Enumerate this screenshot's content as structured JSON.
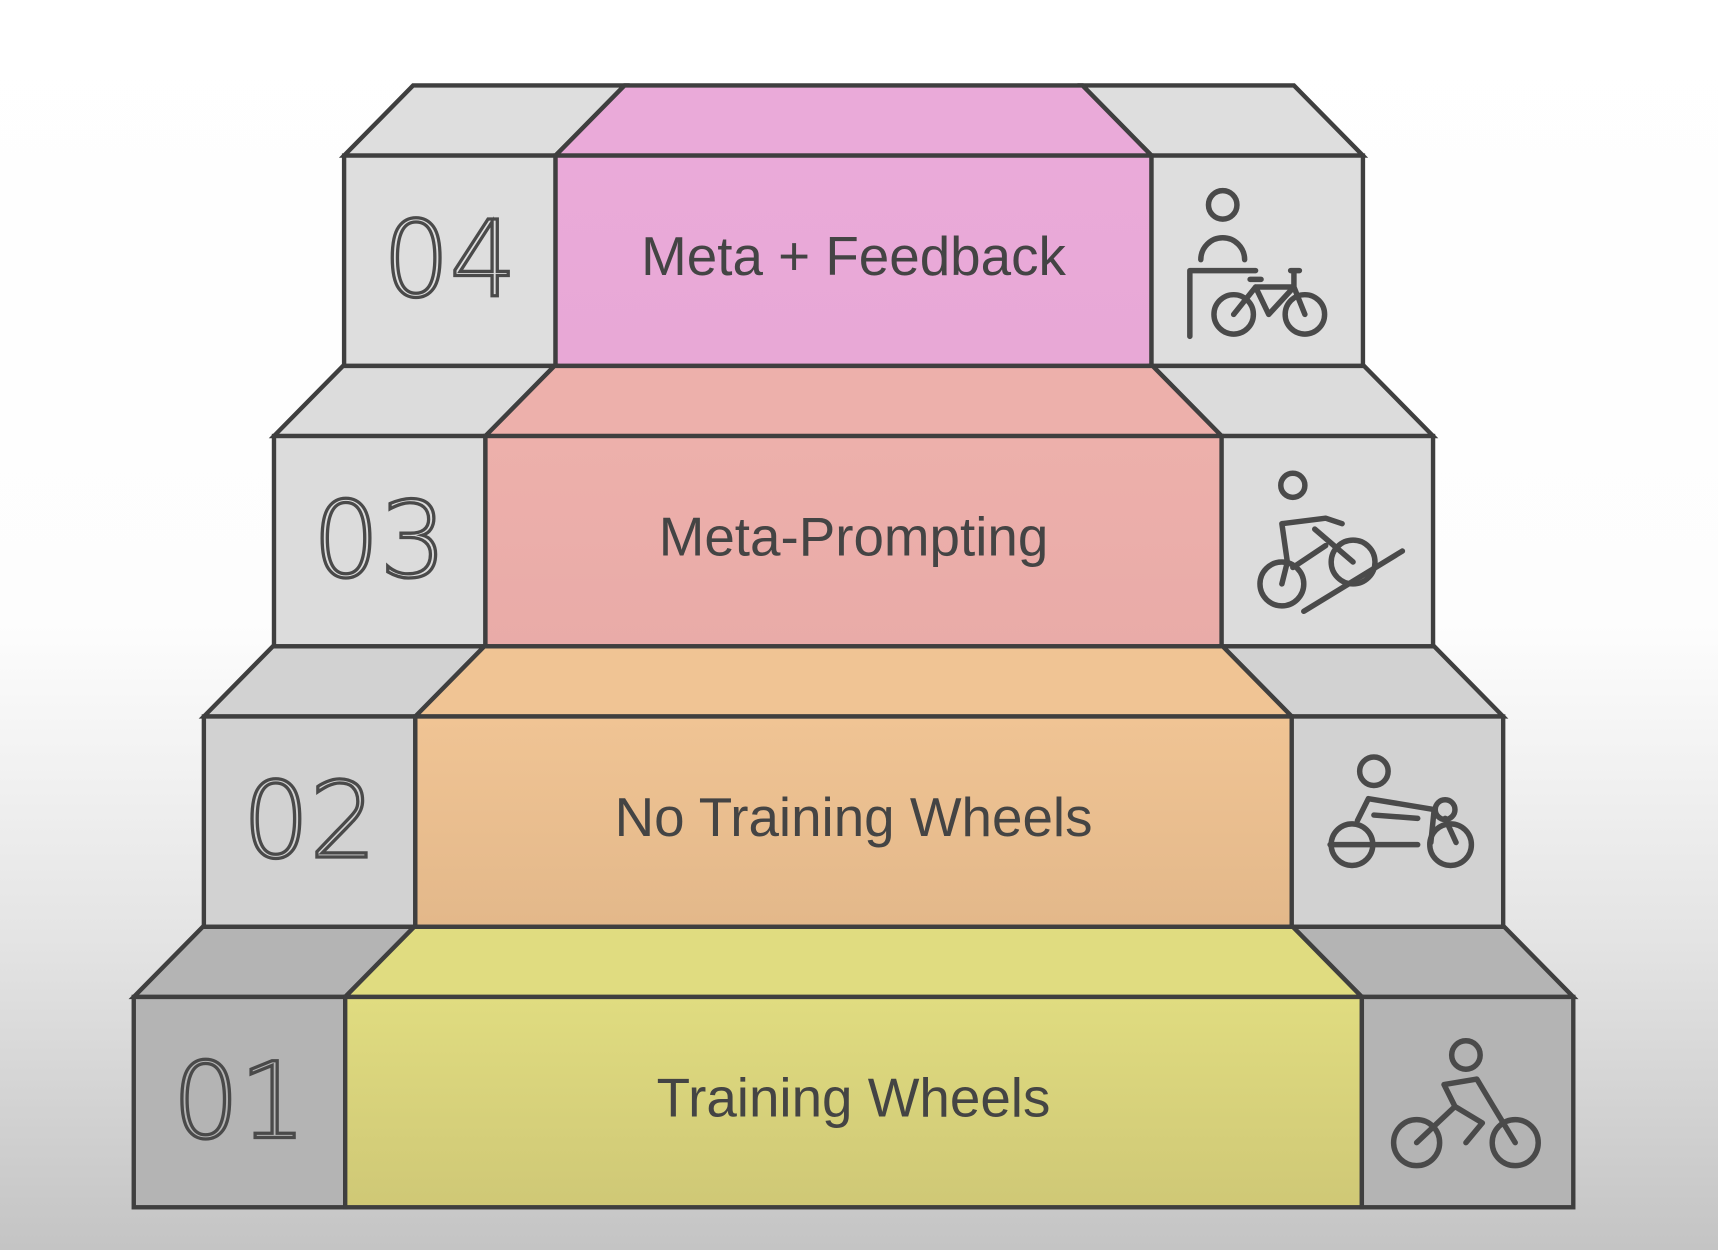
{
  "steps": [
    {
      "number": "01",
      "label": "Training Wheels",
      "color_top": "#e0dc80",
      "color_bottom": "#cfc876",
      "icon": "cyclist-icon",
      "block_color": "#b4b4b4"
    },
    {
      "number": "02",
      "label": "No Training Wheels",
      "color_top": "#f0c494",
      "color_bottom": "#e3b88a",
      "icon": "cyclist-with-helper-icon",
      "block_color": "#d2d2d2"
    },
    {
      "number": "03",
      "label": "Meta-Prompting",
      "color_top": "#edb0ab",
      "color_bottom": "#e9aba8",
      "icon": "cyclist-uphill-icon",
      "block_color": "#dcdcdc"
    },
    {
      "number": "04",
      "label": "Meta + Feedback",
      "color_top": "#eaaad9",
      "color_bottom": "#e8a8d6",
      "icon": "coach-with-bicycle-icon",
      "block_color": "#dedede"
    }
  ],
  "colors": {
    "outline": "#3f3f3f",
    "text": "#444444"
  }
}
